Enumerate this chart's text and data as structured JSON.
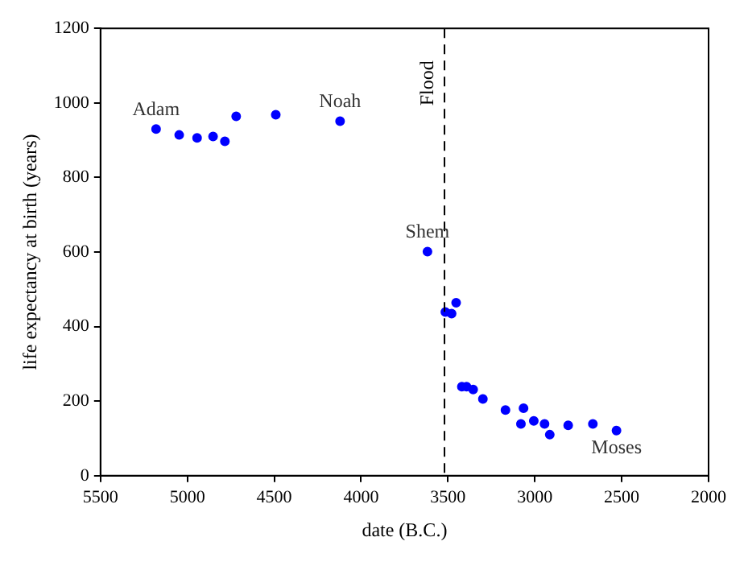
{
  "chart_data": {
    "type": "scatter",
    "xlabel": "date (B.C.)",
    "ylabel": "life expectancy at birth (years)",
    "x": [
      5180,
      5047,
      4944,
      4852,
      4784,
      4719,
      4491,
      4121,
      3618,
      3515,
      3479,
      3453,
      3420,
      3393,
      3355,
      3299,
      3169,
      3065,
      3080,
      3006,
      2944,
      2914,
      2808,
      2666,
      2530
    ],
    "series": [
      {
        "color": "#0000ff",
        "values": [
          930,
          914,
          906,
          910,
          897,
          964,
          968,
          951,
          601,
          439,
          435,
          464,
          239,
          239,
          231,
          206,
          176,
          181,
          139,
          147,
          139,
          110,
          135,
          139,
          121
        ]
      }
    ],
    "xlim": [
      5500,
      2000
    ],
    "xticks": [
      5500,
      5000,
      4500,
      4000,
      3500,
      3000,
      2500,
      2000
    ],
    "ylim": [
      0,
      1200
    ],
    "yticks": [
      0,
      200,
      400,
      600,
      800,
      1000,
      1200
    ],
    "ref_lines": [
      {
        "axis": "x",
        "value": 3520,
        "label": "Flood",
        "color": "#000000",
        "line_style": "dashed"
      }
    ],
    "annotations": [
      {
        "text": "Adam",
        "x": 5180,
        "y": 930
      },
      {
        "text": "Noah",
        "x": 4121,
        "y": 951
      },
      {
        "text": "Shem",
        "x": 3618,
        "y": 601
      },
      {
        "text": "Moses",
        "x": 2530,
        "y": 121
      }
    ],
    "marker": "circle",
    "grid": false,
    "legend": false
  }
}
